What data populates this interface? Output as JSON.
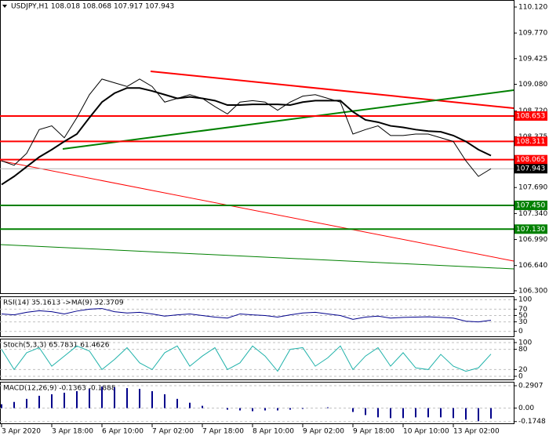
{
  "chart_data": [
    {
      "type": "line",
      "title": "USDJPY,H1 108.018 108.068 107.917 107.943",
      "categories": [
        "3 Apr 2020",
        null,
        null,
        null,
        "3 Apr 18:00",
        null,
        null,
        null,
        "6 Apr 10:00",
        null,
        null,
        null,
        "7 Apr 02:00",
        null,
        null,
        null,
        "7 Apr 18:00",
        null,
        null,
        null,
        "8 Apr 10:00",
        null,
        null,
        null,
        "9 Apr 02:00",
        null,
        null,
        null,
        "9 Apr 18:00",
        null,
        null,
        null,
        "10 Apr 10:00",
        null,
        null,
        null,
        "13 Apr 02:00",
        null,
        null,
        null
      ],
      "series": [
        {
          "color": "#000000",
          "line_width": 1,
          "values": [
            108.05,
            107.99,
            108.15,
            108.47,
            108.52,
            108.36,
            108.63,
            108.94,
            109.15,
            109.1,
            109.05,
            109.15,
            109.05,
            108.84,
            108.89,
            108.94,
            108.89,
            108.78,
            108.68,
            108.84,
            108.86,
            108.84,
            108.73,
            108.84,
            108.92,
            108.94,
            108.89,
            108.84,
            108.41,
            108.47,
            108.52,
            108.39,
            108.39,
            108.41,
            108.41,
            108.36,
            108.31,
            108.05,
            107.84,
            107.943
          ]
        },
        {
          "color": "#000000",
          "line_width": 2,
          "values": [
            107.73,
            107.84,
            107.97,
            108.1,
            108.2,
            108.31,
            108.41,
            108.63,
            108.84,
            108.96,
            109.03,
            109.03,
            108.99,
            108.94,
            108.89,
            108.91,
            108.89,
            108.86,
            108.8,
            108.8,
            108.81,
            108.81,
            108.81,
            108.8,
            108.84,
            108.86,
            108.86,
            108.86,
            108.71,
            108.6,
            108.57,
            108.52,
            108.5,
            108.47,
            108.45,
            108.44,
            108.39,
            108.31,
            108.2,
            108.12
          ]
        }
      ],
      "levels": [
        {
          "value": 108.653,
          "color": "#ff0000"
        },
        {
          "value": 108.311,
          "color": "#ff0000"
        },
        {
          "value": 108.065,
          "color": "#ff0000"
        },
        {
          "value": {
            "value": 107.45,
            "label": "107.450"
          },
          "color": "#008000"
        },
        {
          "value": {
            "value": 107.13,
            "label": "107.130"
          },
          "color": "#008000"
        }
      ],
      "current": 107.943,
      "ylim": [
        106.257,
        110.204
      ],
      "yticks": [
        {
          "value": 110.12,
          "label": "110.120"
        },
        {
          "value": 109.77,
          "label": "109.770"
        },
        109.425,
        {
          "value": 109.08,
          "label": "109.080"
        },
        {
          "value": 108.72,
          "label": "108.720"
        },
        108.375,
        {
          "value": 108.03,
          "label": "108.030"
        },
        {
          "value": 107.69,
          "label": "107.690"
        },
        {
          "value": 107.34,
          "label": "107.340"
        },
        {
          "value": 106.99,
          "label": "106.990"
        },
        {
          "value": 106.64,
          "label": "106.640"
        },
        {
          "value": 106.3,
          "label": "106.300"
        }
      ]
    },
    {
      "type": "line",
      "title": "RSI(14) 35.1613 ->MA(9) 32.3709",
      "series": [
        {
          "color": "#00008b",
          "line_width": 1,
          "values": [
            55,
            52,
            60,
            65,
            62,
            55,
            64,
            70,
            72,
            62,
            58,
            60,
            55,
            48,
            52,
            55,
            50,
            45,
            42,
            55,
            52,
            50,
            45,
            52,
            58,
            60,
            55,
            50,
            38,
            45,
            48,
            42,
            44,
            45,
            46,
            44,
            42,
            32,
            30,
            35.1613
          ]
        }
      ],
      "ylim": [
        -18,
        108
      ],
      "yticks": [
        100,
        70,
        50,
        30,
        0
      ]
    },
    {
      "type": "line",
      "title": "Stoch(5,3,3) 65.7831 61.4626",
      "series": [
        {
          "color": "#20b2aa",
          "line_width": 1,
          "values": [
            80,
            20,
            70,
            85,
            30,
            60,
            90,
            75,
            20,
            50,
            85,
            40,
            20,
            70,
            90,
            30,
            60,
            85,
            20,
            40,
            90,
            60,
            15,
            80,
            85,
            30,
            55,
            90,
            20,
            60,
            85,
            30,
            70,
            25,
            20,
            65,
            30,
            15,
            25,
            65.7831
          ]
        }
      ],
      "ylim": [
        -11.6,
        109.3
      ],
      "yticks": [
        100,
        80,
        20,
        0
      ]
    },
    {
      "type": "bar",
      "title": "MACD(12,26,9) -0.1363 -0.1888",
      "color": "#00008b",
      "values": [
        0.05,
        0.08,
        0.12,
        0.16,
        0.18,
        0.2,
        0.22,
        0.25,
        0.28,
        0.27,
        0.26,
        0.25,
        0.22,
        0.18,
        0.12,
        0.07,
        0.03,
        0.0,
        -0.02,
        -0.03,
        -0.04,
        -0.03,
        -0.03,
        -0.02,
        -0.01,
        0.0,
        0.01,
        0.0,
        -0.05,
        -0.09,
        -0.12,
        -0.13,
        -0.13,
        -0.12,
        -0.12,
        -0.12,
        -0.13,
        -0.15,
        -0.17,
        -0.1363
      ],
      "ylim": [
        -0.208,
        0.332
      ],
      "yticks": [
        0.2907,
        {
          "value": 0,
          "label": "0.00"
        },
        -0.1748
      ]
    }
  ]
}
